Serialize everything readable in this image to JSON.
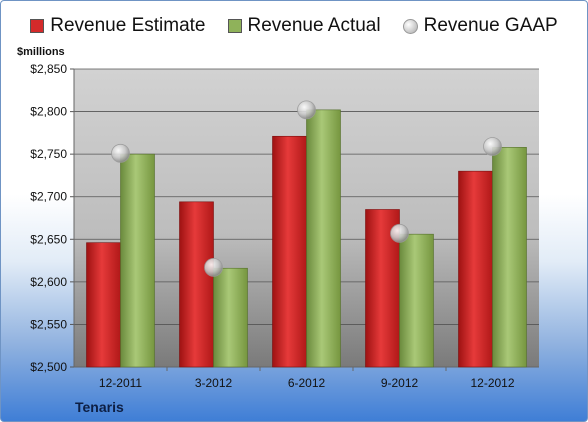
{
  "chart_data": {
    "type": "bar",
    "title": "",
    "ylabel": "$millions",
    "xlabel": "",
    "categories": [
      "12-2011",
      "3-2012",
      "6-2012",
      "9-2012",
      "12-2012"
    ],
    "series": [
      {
        "name": "Revenue Estimate",
        "kind": "bar",
        "color": "#d42a2a",
        "values": [
          2646,
          2694,
          2771,
          2685,
          2730
        ]
      },
      {
        "name": "Revenue Actual",
        "kind": "bar",
        "color": "#8fb25a",
        "values": [
          2750,
          2616,
          2802,
          2656,
          2758
        ]
      },
      {
        "name": "Revenue GAAP",
        "kind": "marker",
        "color": "#c8c8c8",
        "values": [
          2751,
          2617,
          2802,
          2657,
          2759
        ]
      }
    ],
    "ylim": [
      2500,
      2850
    ],
    "yticks": [
      "$2,500",
      "$2,550",
      "$2,600",
      "$2,650",
      "$2,700",
      "$2,750",
      "$2,800",
      "$2,850"
    ],
    "grid": true,
    "legend_position": "top"
  },
  "company": "Tenaris"
}
